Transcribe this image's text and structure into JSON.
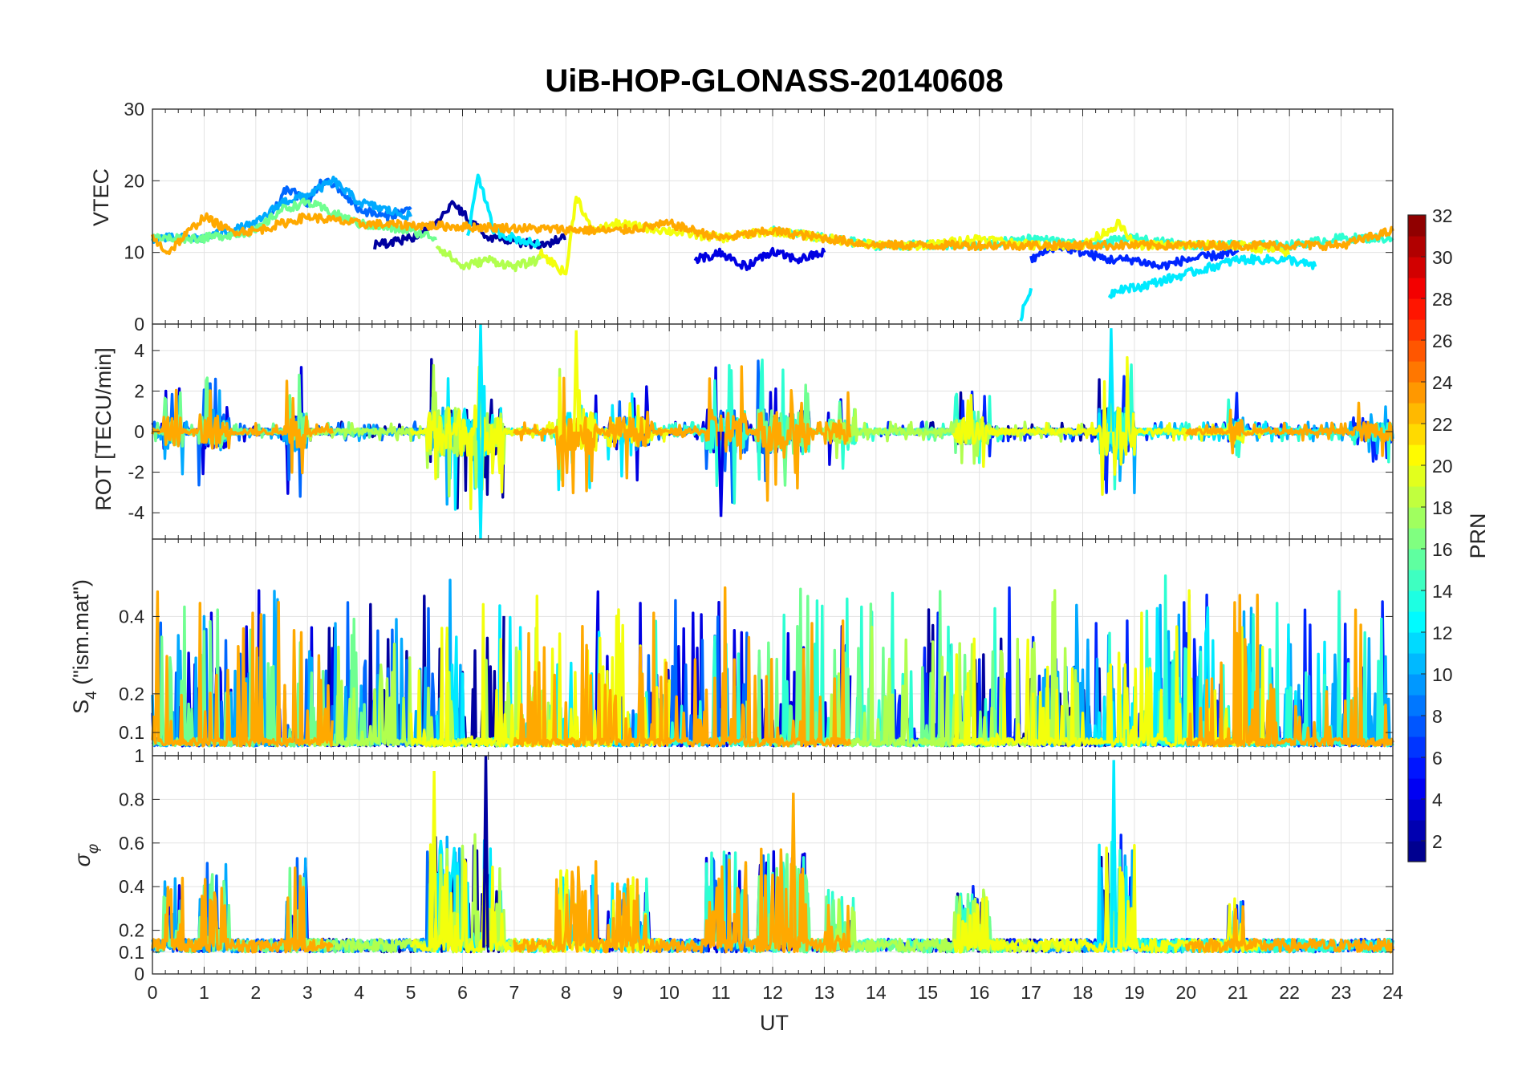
{
  "chart_data": [
    {
      "type": "line",
      "title": "UiB-HOP-GLONASS-20140608",
      "xlabel": "UT",
      "ylabel": "VTEC",
      "xlim": [
        0,
        24
      ],
      "ylim": [
        0,
        30
      ],
      "yticks": [
        "0",
        "10",
        "20",
        "30"
      ],
      "xticks": [
        "0",
        "1",
        "2",
        "3",
        "4",
        "5",
        "6",
        "7",
        "8",
        "9",
        "10",
        "11",
        "12",
        "13",
        "14",
        "15",
        "16",
        "17",
        "18",
        "19",
        "20",
        "21",
        "22",
        "23",
        "24"
      ],
      "grid": true,
      "series": [
        {
          "prn": 2,
          "x": [
            4.3,
            5.0,
            5.5,
            5.8,
            6.5,
            7.5,
            8.0
          ],
          "y": [
            11,
            12,
            14,
            17,
            12,
            11,
            12
          ]
        },
        {
          "prn": 4,
          "x": [
            10.5,
            11.0,
            11.5,
            12.0,
            12.5,
            13.0
          ],
          "y": [
            9,
            10,
            8,
            10,
            9,
            10
          ]
        },
        {
          "prn": 6,
          "x": [
            17.0,
            17.5,
            18.0,
            18.5,
            19.0,
            19.5,
            20.0,
            21.0
          ],
          "y": [
            9,
            11,
            10,
            9,
            9,
            8,
            9,
            10
          ]
        },
        {
          "prn": 8,
          "x": [
            2.3,
            2.6,
            3.0,
            3.3,
            3.6,
            4.0,
            4.5,
            5.0
          ],
          "y": [
            15,
            19,
            17,
            20,
            19,
            16,
            15,
            16
          ]
        },
        {
          "prn": 10,
          "x": [
            0.0,
            1.0,
            2.0,
            2.5,
            3.0,
            3.5,
            4.0,
            5.0
          ],
          "y": [
            12,
            12,
            14,
            17,
            18,
            20,
            17,
            15
          ]
        },
        {
          "prn": 12,
          "x": [
            6.1,
            6.3,
            6.6,
            7.0,
            7.5
          ],
          "y": [
            12,
            21,
            13,
            12,
            11
          ]
        },
        {
          "prn": 12,
          "x": [
            16.8,
            17.0
          ],
          "y": [
            1,
            5
          ]
        },
        {
          "prn": 12,
          "x": [
            18.5,
            18.7,
            19.0,
            19.5,
            20.0,
            20.5,
            21.0,
            21.5,
            22.0,
            22.5
          ],
          "y": [
            4,
            5,
            5,
            6,
            7,
            8,
            9,
            9,
            9,
            8
          ]
        },
        {
          "prn": 14,
          "x": [
            12.0,
            13.0,
            14.0,
            15.0,
            16.0,
            17.0,
            18.0,
            19.0,
            20.0,
            21.0,
            22.0,
            23.0,
            24.0
          ],
          "y": [
            13,
            12,
            11,
            11,
            11,
            12,
            11,
            12,
            11,
            11,
            11,
            12,
            12
          ]
        },
        {
          "prn": 16,
          "x": [
            0.0,
            1.0,
            2.0,
            2.5,
            3.0,
            4.0,
            5.0,
            5.5
          ],
          "y": [
            12,
            12,
            13,
            16,
            17,
            14,
            13,
            12
          ]
        },
        {
          "prn": 18,
          "x": [
            5.5,
            6.0,
            6.5,
            7.0,
            7.5
          ],
          "y": [
            11,
            8,
            9,
            8,
            9
          ]
        },
        {
          "prn": 20,
          "x": [
            7.5,
            8.0,
            8.2,
            8.5,
            9.0,
            10.0,
            11.0,
            12.0,
            13.0,
            14.0,
            15.0,
            16.0,
            17.0,
            18.0,
            18.7,
            19.0,
            20.0,
            21.0,
            22.0
          ],
          "y": [
            10,
            7,
            18,
            13,
            14,
            13,
            12,
            13,
            12,
            11,
            11,
            12,
            11,
            11,
            14,
            11,
            11,
            11,
            10
          ]
        },
        {
          "prn": 23,
          "x": [
            0.0,
            0.3,
            1.0,
            1.5,
            2.0,
            3.0,
            4.0,
            9.0,
            10.0,
            11.0,
            12.0,
            13.0,
            14.0,
            21.0,
            22.0,
            23.0,
            24.0
          ],
          "y": [
            12,
            10,
            15,
            13,
            13,
            15,
            14,
            13,
            14,
            12,
            13,
            12,
            11,
            11,
            11,
            11,
            13
          ]
        }
      ]
    },
    {
      "type": "line",
      "xlabel": "UT",
      "ylabel": "ROT [TECU/min]",
      "xlim": [
        0,
        24
      ],
      "ylim": [
        -5.3,
        5.3
      ],
      "yticks": [
        "-4",
        "-2",
        "0",
        "2",
        "4"
      ],
      "grid": true,
      "note_peaks": [
        {
          "prn": 12,
          "x": 6.35,
          "y": 5.3
        },
        {
          "prn": 12,
          "x": 6.35,
          "y": -5.3
        },
        {
          "prn": 20,
          "x": 8.2,
          "y": 5.0
        },
        {
          "prn": 4,
          "x": 11.0,
          "y": -4.2
        },
        {
          "prn": 12,
          "x": 18.55,
          "y": 5.1
        }
      ]
    },
    {
      "type": "line",
      "xlabel": "UT",
      "ylabel": "S4 (\"ism.mat\")",
      "xlim": [
        0,
        24
      ],
      "ylim": [
        0.04,
        0.6
      ],
      "yticks": [
        "0.1",
        "0.2",
        "0.4"
      ],
      "grid": true
    },
    {
      "type": "line",
      "xlabel": "UT",
      "ylabel": "σφ",
      "xlim": [
        0,
        24
      ],
      "ylim": [
        0,
        1
      ],
      "yticks": [
        "0",
        "0.1",
        "0.2",
        "0.4",
        "0.6",
        "0.8",
        "1"
      ],
      "grid": true,
      "note_peaks": [
        {
          "prn": 2,
          "x": 6.45,
          "y": 1.0
        },
        {
          "prn": 20,
          "x": 5.45,
          "y": 0.93
        },
        {
          "prn": 12,
          "x": 18.6,
          "y": 0.98
        },
        {
          "prn": 23,
          "x": 12.4,
          "y": 0.83
        }
      ]
    }
  ],
  "colorbar": {
    "label": "PRN",
    "min": 1,
    "max": 32,
    "ticks": [
      "2",
      "4",
      "6",
      "8",
      "10",
      "12",
      "14",
      "16",
      "18",
      "20",
      "22",
      "24",
      "26",
      "28",
      "30",
      "32"
    ],
    "colormap": "jet"
  },
  "text": {
    "title": "UiB-HOP-GLONASS-20140608",
    "xlabel": "UT",
    "vtec_label": "VTEC",
    "rot_label": "ROT [TECU/min]",
    "s4_label_main": "S",
    "s4_label_sub": "4",
    "s4_label_rest": " (\"ism.mat\")",
    "sigma_label": "σ",
    "sigma_sub": "φ",
    "cb_label": "PRN"
  }
}
